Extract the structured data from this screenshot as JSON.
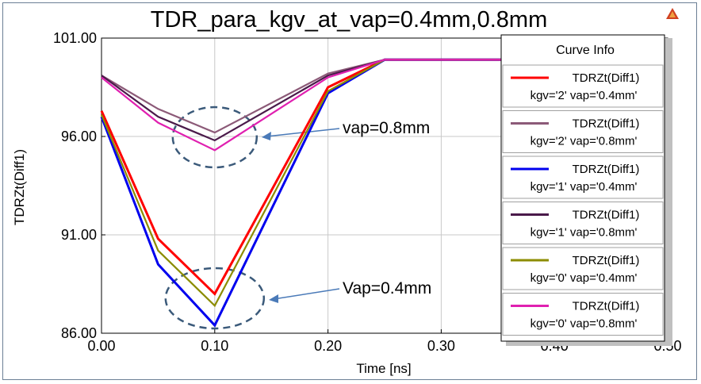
{
  "chart_data": {
    "type": "line",
    "title": "TDR_para_kgv_at_vap=0.4mm,0.8mm",
    "xlabel": "Time [ns]",
    "ylabel": "TDRZt(Diff1)",
    "xlim": [
      0.0,
      0.5
    ],
    "ylim": [
      86.0,
      101.0
    ],
    "x_ticks": [
      "0.00",
      "0.10",
      "0.20",
      "0.30",
      "0.40",
      "0.50"
    ],
    "y_ticks": [
      "86.00",
      "91.00",
      "96.00",
      "101.00"
    ],
    "grid": true,
    "legend_title": "Curve Info",
    "legend_position": "right",
    "series": [
      {
        "name": "TDRZt(Diff1)",
        "params": "kgv='2' vap='0.4mm'",
        "color": "#ff0000",
        "x": [
          0.0,
          0.05,
          0.1,
          0.2,
          0.25,
          0.5
        ],
        "y": [
          97.3,
          90.8,
          88.0,
          98.5,
          99.9,
          99.9
        ]
      },
      {
        "name": "TDRZt(Diff1)",
        "params": "kgv='2' vap='0.8mm'",
        "color": "#8c5a78",
        "x": [
          0.0,
          0.05,
          0.1,
          0.2,
          0.25,
          0.5
        ],
        "y": [
          99.1,
          97.4,
          96.2,
          99.2,
          99.9,
          99.9
        ]
      },
      {
        "name": "TDRZt(Diff1)",
        "params": "kgv='1' vap='0.4mm'",
        "color": "#0000ee",
        "x": [
          0.0,
          0.05,
          0.1,
          0.2,
          0.25,
          0.5
        ],
        "y": [
          97.0,
          89.5,
          86.4,
          98.2,
          99.9,
          99.9
        ]
      },
      {
        "name": "TDRZt(Diff1)",
        "params": "kgv='1' vap='0.8mm'",
        "color": "#4a1a4a",
        "x": [
          0.0,
          0.05,
          0.1,
          0.2,
          0.25,
          0.5
        ],
        "y": [
          99.1,
          97.0,
          95.8,
          99.1,
          99.9,
          99.9
        ]
      },
      {
        "name": "TDRZt(Diff1)",
        "params": "kgv='0' vap='0.4mm'",
        "color": "#8c8c00",
        "x": [
          0.0,
          0.05,
          0.1,
          0.2,
          0.25,
          0.5
        ],
        "y": [
          97.1,
          90.2,
          87.4,
          98.3,
          99.9,
          99.9
        ]
      },
      {
        "name": "TDRZt(Diff1)",
        "params": "kgv='0' vap='0.8mm'",
        "color": "#e020b0",
        "x": [
          0.0,
          0.05,
          0.1,
          0.2,
          0.25,
          0.5
        ],
        "y": [
          99.0,
          96.7,
          95.3,
          99.0,
          99.9,
          99.9
        ]
      }
    ],
    "annotations": [
      {
        "text": "vap=0.8mm"
      },
      {
        "text": "Vap=0.4mm"
      }
    ]
  }
}
